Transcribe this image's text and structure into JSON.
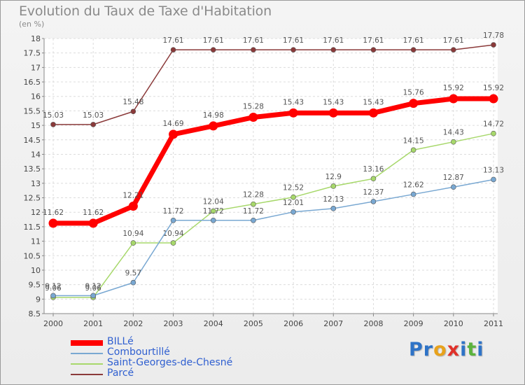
{
  "title": "Evolution du Taux de Taxe d'Habitation",
  "subtitle": "(en %)",
  "logo": {
    "letters": [
      "P",
      "r",
      "o",
      "x",
      "i",
      "t",
      "i"
    ],
    "colors": [
      "#2e73c7",
      "#2e73c7",
      "#e8a21b",
      "#e0312a",
      "#2e73c7",
      "#5bb33d",
      "#2e73c7"
    ]
  },
  "chart_data": {
    "type": "line",
    "categories": [
      "2000",
      "2001",
      "2002",
      "2003",
      "2004",
      "2005",
      "2006",
      "2007",
      "2008",
      "2009",
      "2010",
      "2011"
    ],
    "ylim": [
      8.5,
      18
    ],
    "yticks": [
      "8.5",
      "9",
      "9.5",
      "10",
      "10.5",
      "11",
      "11.5",
      "12",
      "12.5",
      "13",
      "13.5",
      "14",
      "14.5",
      "15",
      "15.5",
      "16",
      "16.5",
      "17",
      "17.5",
      "18"
    ],
    "grid": true,
    "legend_position": "bottom-left",
    "series": [
      {
        "name": "Parcé",
        "color": "#8b3a3a",
        "values": [
          15.03,
          15.03,
          15.48,
          17.61,
          17.61,
          17.61,
          17.61,
          17.61,
          17.61,
          17.61,
          17.61,
          17.78
        ],
        "labels": [
          "15.03",
          "15.03",
          "15.48",
          "17.61",
          "17.61",
          "17.61",
          "17.61",
          "17.61",
          "17.61",
          "17.61",
          "17.61",
          "17.78"
        ]
      },
      {
        "name": "Saint-Georges-de-Chesné",
        "color": "#a7d86b",
        "values": [
          9.06,
          9.06,
          10.94,
          10.94,
          12.04,
          12.28,
          12.52,
          12.9,
          13.16,
          14.15,
          14.43,
          14.72
        ],
        "labels": [
          "9.06",
          "9.06",
          "10.94",
          "10.94",
          "12.04",
          "12.28",
          "12.52",
          "12.9",
          "13.16",
          "14.15",
          "14.43",
          "14.72"
        ]
      },
      {
        "name": "Combourtillé",
        "color": "#79a8d2",
        "values": [
          9.12,
          9.12,
          9.57,
          11.72,
          11.72,
          11.72,
          12.01,
          12.13,
          12.37,
          12.62,
          12.87,
          13.13
        ],
        "labels": [
          "9.12",
          "9.12",
          "9.57",
          "11.72",
          "11.72",
          "11.72",
          "12.01",
          "12.13",
          "12.37",
          "12.62",
          "12.87",
          "13.13"
        ]
      },
      {
        "name": "BILLé",
        "color": "#ff0000",
        "values": [
          11.62,
          11.62,
          12.21,
          14.69,
          14.98,
          15.28,
          15.43,
          15.43,
          15.43,
          15.76,
          15.92,
          15.92
        ],
        "labels": [
          "11.62",
          "11.62",
          "12.21",
          "14.69",
          "14.98",
          "15.28",
          "15.43",
          "15.43",
          "15.43",
          "15.76",
          "15.92",
          "15.92"
        ]
      }
    ],
    "legend": [
      "BILLé",
      "Combourtillé",
      "Saint-Georges-de-Chesné",
      "Parcé"
    ]
  }
}
